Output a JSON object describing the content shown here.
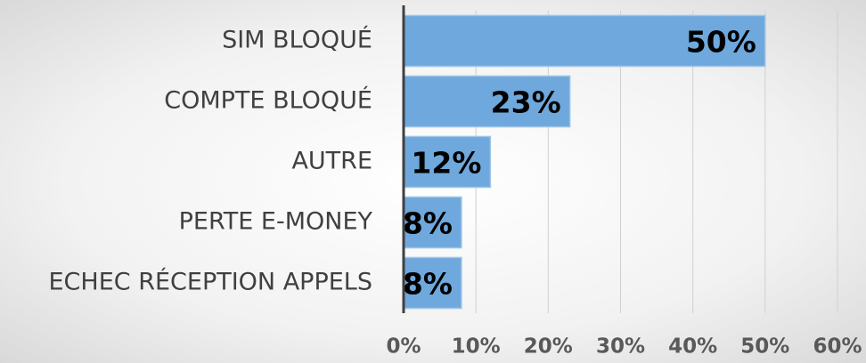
{
  "chart_data": {
    "type": "bar",
    "orientation": "horizontal",
    "categories": [
      "SIM BLOQUÉ",
      "COMPTE BLOQUÉ",
      "AUTRE",
      "PERTE E-MONEY",
      "ECHEC RÉCEPTION APPELS"
    ],
    "values": [
      50,
      23,
      12,
      8,
      8
    ],
    "value_labels": [
      "50%",
      "23%",
      "12%",
      "8%",
      "8%"
    ],
    "color": "#6fa8dc",
    "xlim": [
      0,
      60
    ],
    "xticks": [
      {
        "value": 0,
        "label": "0%"
      },
      {
        "value": 10,
        "label": "10%"
      },
      {
        "value": 20,
        "label": "20%"
      },
      {
        "value": 30,
        "label": "30%"
      },
      {
        "value": 40,
        "label": "40%"
      },
      {
        "value": 50,
        "label": "50%"
      },
      {
        "value": 60,
        "label": "60%"
      }
    ],
    "grid": true
  }
}
